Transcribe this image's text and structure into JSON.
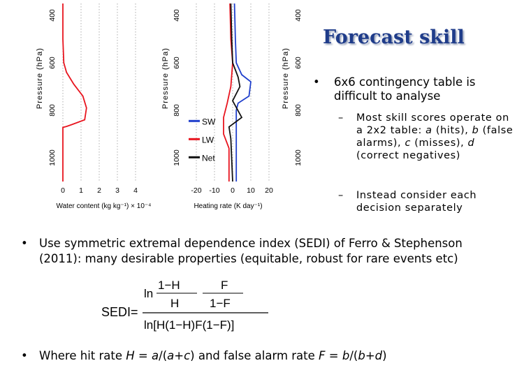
{
  "slide": {
    "title": "Forecast skill",
    "bullets": [
      {
        "text": "6x6 contingency table is difficult to analyse"
      },
      {
        "text": "Use symmetric extremal dependence index (SEDI) of Ferro & Stephenson (2011): many desirable properties (equitable, robust for rare events etc)"
      },
      {
        "pre": "Where hit rate ",
        "v1": "H",
        "mid1": " = ",
        "v2": "a",
        "s1": "/(",
        "v3": "a",
        "s2": "+",
        "v4": "c",
        "s3": ") and false alarm rate ",
        "v5": "F",
        "mid2": " = ",
        "v6": "b",
        "s4": "/(",
        "v7": "b",
        "s5": "+",
        "v8": "d",
        "s6": ")"
      }
    ],
    "subbullets": [
      {
        "pre": "Most skill scores operate on a 2x2 table: ",
        "a": "a",
        "t1": " (hits), ",
        "b": "b",
        "t2": " (false alarms), ",
        "c": "c",
        "t3": " (misses), ",
        "d": "d",
        "t4": " (correct negatives)"
      },
      {
        "text": "Instead consider each decision separately"
      }
    ],
    "equation": {
      "lhs": "SEDI=",
      "ln": "ln",
      "num_num": "1−H",
      "num_num2": "F",
      "num_den": "H",
      "num_den2": "1−F",
      "den_text": "ln[H(1−H)F(1−F)]"
    }
  },
  "chart_data": [
    {
      "type": "line",
      "title": "",
      "xlabel": "Water content (kg kg⁻¹) × 10⁻⁴",
      "ylabel": "Pressure (hPa)",
      "xlim": [
        0,
        5
      ],
      "ylim": [
        1100,
        350
      ],
      "xticks": [
        "0",
        "1",
        "2",
        "3",
        "4"
      ],
      "yticks": [
        "400",
        "600",
        "800",
        "1000"
      ],
      "series": [
        {
          "color": "#e8141e",
          "points": [
            [
              0,
              350
            ],
            [
              0,
              500
            ],
            [
              0.05,
              600
            ],
            [
              0.2,
              640
            ],
            [
              0.6,
              690
            ],
            [
              1.1,
              740
            ],
            [
              1.3,
              790
            ],
            [
              1.2,
              840
            ],
            [
              0.5,
              860
            ],
            [
              0.2,
              868
            ],
            [
              0,
              872
            ],
            [
              0,
              1100
            ]
          ]
        }
      ]
    },
    {
      "type": "line",
      "title": "",
      "xlabel": "Heating rate (K day⁻¹)",
      "ylabel": "Pressure (hPa)",
      "xlim": [
        -25,
        25
      ],
      "ylim": [
        1100,
        350
      ],
      "xticks": [
        "-20",
        "-10",
        "0",
        "10",
        "20"
      ],
      "yticks": [
        "400",
        "600",
        "800",
        "1000"
      ],
      "legend": {
        "position": "bottom-left",
        "entries": [
          "SW",
          "LW",
          "Net"
        ]
      },
      "series": [
        {
          "name": "SW",
          "color": "#1f3fcc",
          "points": [
            [
              1,
              350
            ],
            [
              1.5,
              500
            ],
            [
              2,
              600
            ],
            [
              5,
              650
            ],
            [
              10,
              680
            ],
            [
              9,
              740
            ],
            [
              3,
              770
            ],
            [
              2,
              800
            ],
            [
              2,
              1100
            ]
          ]
        },
        {
          "name": "LW",
          "color": "#e8141e",
          "points": [
            [
              -1.5,
              350
            ],
            [
              -1,
              500
            ],
            [
              0,
              600
            ],
            [
              -1,
              700
            ],
            [
              -3,
              770
            ],
            [
              -5,
              830
            ],
            [
              -5,
              900
            ],
            [
              -2,
              960
            ],
            [
              -2,
              1100
            ]
          ]
        },
        {
          "name": "Net",
          "color": "#111111",
          "points": [
            [
              -1,
              350
            ],
            [
              -0.5,
              500
            ],
            [
              0,
              600
            ],
            [
              3,
              660
            ],
            [
              4,
              700
            ],
            [
              0,
              760
            ],
            [
              5,
              830
            ],
            [
              -2,
              870
            ],
            [
              -1,
              920
            ],
            [
              0,
              1100
            ]
          ]
        }
      ]
    },
    {
      "type": "line",
      "title": "",
      "xlabel": "",
      "ylabel": "Pressure (hPa)",
      "ylim": [
        1100,
        350
      ],
      "yticks": [
        "400",
        "600",
        "800",
        "1000"
      ],
      "series": []
    }
  ]
}
